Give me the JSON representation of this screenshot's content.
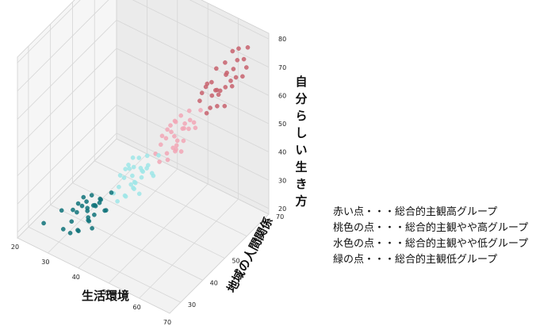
{
  "chart_data": {
    "type": "scatter",
    "projection": "3d",
    "xlabel": "生活環境",
    "ylabel": "地域の人間関係",
    "zlabel": "自分らしい生き方",
    "xlim": [
      20,
      70
    ],
    "ylim": [
      25,
      70
    ],
    "zlim": [
      18,
      82
    ],
    "xticks": [
      "20",
      "30",
      "40",
      "50",
      "60",
      "70"
    ],
    "yticks": [
      "30",
      "40",
      "50",
      "60",
      "70"
    ],
    "zticks": [
      "20",
      "30",
      "40",
      "50",
      "60",
      "70",
      "80"
    ],
    "grid": true,
    "legend_notes": [
      "赤い点・・・総合的主観高グループ",
      "桃色の点・・・総合的主観やや高グループ",
      "水色の点・・・総合的主観やや低グループ",
      "緑の点・・・総合的主観低グループ"
    ],
    "series": [
      {
        "color": "#c8636f",
        "points": [
          [
            60,
            60,
            72
          ],
          [
            62,
            62,
            70
          ],
          [
            58,
            58,
            66
          ],
          [
            64,
            64,
            74
          ],
          [
            63,
            66,
            76
          ],
          [
            57,
            60,
            65
          ],
          [
            61,
            63,
            68
          ],
          [
            65,
            62,
            70
          ],
          [
            59,
            61,
            63
          ],
          [
            56,
            59,
            62
          ],
          [
            62,
            65,
            69
          ],
          [
            60,
            58,
            64
          ],
          [
            66,
            66,
            78
          ],
          [
            58,
            63,
            61
          ],
          [
            63,
            60,
            67
          ],
          [
            61,
            59,
            60
          ],
          [
            64,
            67,
            72
          ],
          [
            57,
            62,
            64
          ],
          [
            62,
            61,
            59
          ],
          [
            60,
            64,
            71
          ],
          [
            59,
            57,
            58
          ],
          [
            65,
            65,
            68
          ],
          [
            61,
            66,
            74
          ],
          [
            58,
            60,
            57
          ],
          [
            63,
            63,
            65
          ],
          [
            67,
            64,
            73
          ],
          [
            60,
            61,
            62
          ],
          [
            62,
            59,
            66
          ],
          [
            56,
            58,
            60
          ],
          [
            64,
            61,
            69
          ]
        ]
      },
      {
        "color": "#f2a7b6",
        "points": [
          [
            52,
            52,
            50
          ],
          [
            54,
            50,
            48
          ],
          [
            50,
            53,
            52
          ],
          [
            55,
            55,
            55
          ],
          [
            53,
            51,
            46
          ],
          [
            51,
            54,
            53
          ],
          [
            56,
            53,
            54
          ],
          [
            49,
            50,
            47
          ],
          [
            54,
            56,
            57
          ],
          [
            52,
            49,
            44
          ],
          [
            50,
            51,
            49
          ],
          [
            57,
            54,
            56
          ],
          [
            53,
            55,
            51
          ],
          [
            48,
            52,
            48
          ],
          [
            55,
            52,
            50
          ],
          [
            51,
            50,
            45
          ],
          [
            54,
            53,
            53
          ],
          [
            52,
            55,
            55
          ],
          [
            56,
            56,
            52
          ],
          [
            50,
            48,
            43
          ],
          [
            53,
            52,
            49
          ],
          [
            49,
            53,
            50
          ],
          [
            55,
            51,
            47
          ],
          [
            51,
            52,
            51
          ],
          [
            57,
            57,
            58
          ],
          [
            52,
            53,
            46
          ],
          [
            54,
            54,
            54
          ],
          [
            48,
            49,
            44
          ],
          [
            53,
            50,
            48
          ],
          [
            50,
            55,
            52
          ]
        ]
      },
      {
        "color": "#9fe6e8",
        "points": [
          [
            44,
            44,
            38
          ],
          [
            46,
            42,
            36
          ],
          [
            42,
            45,
            40
          ],
          [
            47,
            47,
            41
          ],
          [
            45,
            43,
            35
          ],
          [
            43,
            46,
            39
          ],
          [
            48,
            45,
            42
          ],
          [
            41,
            42,
            34
          ],
          [
            46,
            48,
            43
          ],
          [
            44,
            41,
            33
          ],
          [
            42,
            43,
            37
          ],
          [
            49,
            46,
            40
          ],
          [
            45,
            47,
            38
          ],
          [
            40,
            44,
            36
          ],
          [
            47,
            44,
            39
          ],
          [
            43,
            42,
            32
          ],
          [
            46,
            45,
            41
          ],
          [
            44,
            47,
            42
          ],
          [
            48,
            48,
            37
          ],
          [
            42,
            40,
            31
          ],
          [
            45,
            44,
            36
          ],
          [
            41,
            45,
            38
          ],
          [
            47,
            43,
            34
          ],
          [
            43,
            44,
            40
          ],
          [
            49,
            49,
            44
          ],
          [
            44,
            45,
            35
          ],
          [
            46,
            46,
            39
          ],
          [
            40,
            41,
            32
          ],
          [
            45,
            42,
            37
          ],
          [
            42,
            47,
            41
          ]
        ]
      },
      {
        "color": "#11737a",
        "points": [
          [
            35,
            36,
            28
          ],
          [
            37,
            34,
            26
          ],
          [
            33,
            37,
            30
          ],
          [
            38,
            38,
            31
          ],
          [
            36,
            35,
            25
          ],
          [
            34,
            37,
            29
          ],
          [
            39,
            36,
            32
          ],
          [
            32,
            33,
            24
          ],
          [
            37,
            39,
            30
          ],
          [
            35,
            32,
            23
          ],
          [
            33,
            34,
            27
          ],
          [
            40,
            37,
            29
          ],
          [
            36,
            38,
            28
          ],
          [
            31,
            35,
            26
          ],
          [
            38,
            35,
            28
          ],
          [
            34,
            33,
            22
          ],
          [
            37,
            36,
            30
          ],
          [
            35,
            38,
            31
          ],
          [
            39,
            39,
            27
          ],
          [
            33,
            31,
            22
          ],
          [
            36,
            35,
            26
          ],
          [
            32,
            36,
            28
          ],
          [
            38,
            34,
            24
          ],
          [
            34,
            35,
            29
          ],
          [
            40,
            40,
            33
          ],
          [
            30,
            32,
            21
          ],
          [
            25,
            30,
            22
          ],
          [
            28,
            34,
            25
          ],
          [
            35,
            36,
            27
          ],
          [
            37,
            37,
            29
          ]
        ]
      }
    ]
  }
}
